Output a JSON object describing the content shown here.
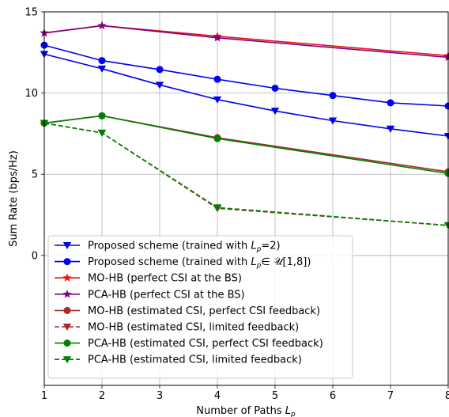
{
  "chart_data": {
    "type": "line",
    "xlabel_prefix": "Number of Paths ",
    "xlabel_var": "L",
    "xlabel_sub": "p",
    "ylabel": "Sum Rate (bps/Hz)",
    "xlim": [
      1,
      8
    ],
    "ylim": [
      -8,
      15
    ],
    "x_ticks": [
      1,
      2,
      3,
      4,
      5,
      6,
      7,
      8
    ],
    "y_ticks": [
      0,
      5,
      10,
      15
    ],
    "grid": true,
    "legend_position": "lower-left",
    "series": [
      {
        "key": "proposed-lp2",
        "name": "Proposed scheme (trained with L_p=2)",
        "legend_parts": [
          "Proposed scheme (trained with ",
          "L",
          "p",
          "=2)"
        ],
        "color": "#0000ee",
        "marker": "triangle-down",
        "dashed": false,
        "x": [
          1,
          2,
          3,
          4,
          5,
          6,
          7,
          8
        ],
        "y": [
          12.4,
          11.5,
          10.5,
          9.6,
          8.9,
          8.3,
          7.8,
          7.35
        ]
      },
      {
        "key": "proposed-u18",
        "name": "Proposed scheme (trained with L_p∈ U[1,8])",
        "legend_parts": [
          "Proposed scheme (trained with ",
          "L",
          "p",
          "∈ 𝒰[1,8])"
        ],
        "color": "#0000ee",
        "marker": "circle",
        "dashed": false,
        "x": [
          1,
          2,
          3,
          4,
          5,
          6,
          7,
          8
        ],
        "y": [
          12.95,
          12.0,
          11.45,
          10.85,
          10.3,
          9.85,
          9.4,
          9.2
        ]
      },
      {
        "key": "mo-hb-perfect",
        "name": "MO-HB (perfect CSI at the BS)",
        "color": "#ee1111",
        "marker": "star",
        "dashed": false,
        "x": [
          1,
          2,
          4,
          8
        ],
        "y": [
          13.7,
          14.15,
          13.5,
          12.3
        ]
      },
      {
        "key": "pca-hb-perfect",
        "name": "PCA-HB (perfect CSI at the BS)",
        "color": "#800080",
        "marker": "star",
        "dashed": false,
        "x": [
          1,
          2,
          4,
          8
        ],
        "y": [
          13.7,
          14.15,
          13.4,
          12.2
        ]
      },
      {
        "key": "mo-hb-est-perfect",
        "name": "MO-HB (estimated CSI, perfect CSI feedback)",
        "color": "#a52a2a",
        "marker": "circle",
        "dashed": false,
        "x": [
          1,
          2,
          4,
          8
        ],
        "y": [
          8.15,
          8.6,
          7.25,
          5.15
        ]
      },
      {
        "key": "mo-hb-est-limited",
        "name": "MO-HB (estimated CSI, limited feedback)",
        "color": "#a52a2a",
        "marker": "triangle-down",
        "dashed": true,
        "x": [
          1,
          2,
          4,
          8
        ],
        "y": [
          8.15,
          7.55,
          2.9,
          1.85
        ]
      },
      {
        "key": "pca-hb-est-perfect",
        "name": "PCA-HB (estimated CSI, perfect CSI feedback)",
        "color": "#008000",
        "marker": "circle",
        "dashed": false,
        "x": [
          1,
          2,
          4,
          8
        ],
        "y": [
          8.15,
          8.6,
          7.2,
          5.05
        ]
      },
      {
        "key": "pca-hb-est-limited",
        "name": "PCA-HB (estimated CSI, limited feedback)",
        "color": "#008000",
        "marker": "triangle-down",
        "dashed": true,
        "x": [
          1,
          2,
          4,
          8
        ],
        "y": [
          8.15,
          7.55,
          2.95,
          1.85
        ]
      }
    ]
  }
}
